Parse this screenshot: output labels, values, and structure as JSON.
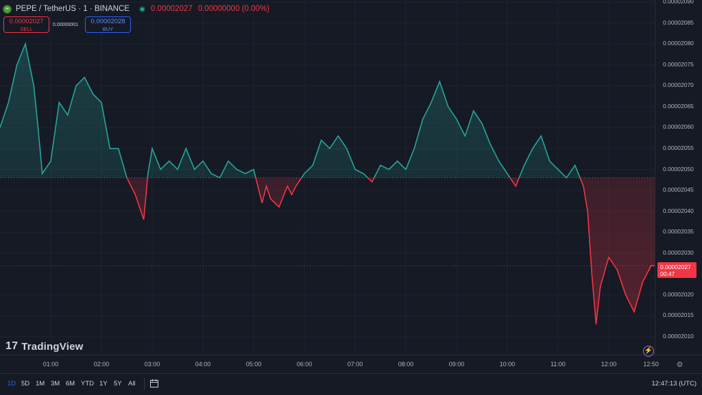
{
  "header": {
    "symbol": "PEPE / TetherUS · 1 · BINANCE",
    "last_price": "0.00002027",
    "change": "0.00000000 (0.00%)"
  },
  "trade": {
    "sell_price": "0.00002027",
    "sell_label": "SELL",
    "spread": "0.00000001",
    "buy_price": "0.00002028",
    "buy_label": "BUY"
  },
  "logo_text": "TradingView",
  "price_tag": {
    "price": "0.00002027",
    "countdown": "00:47"
  },
  "colors": {
    "up": "#26a69a",
    "down": "#f23645",
    "background": "#161a25",
    "accent": "#2962ff"
  },
  "toolbar": {
    "ranges": [
      "1D",
      "5D",
      "1M",
      "3M",
      "6M",
      "YTD",
      "1Y",
      "5Y",
      "All"
    ],
    "active_range": "1D",
    "clock": "12:47:13 (UTC)"
  },
  "icons": [
    "coin-icon",
    "status-dot-icon",
    "calendar-icon",
    "lightning-icon",
    "settings-icon"
  ],
  "chart_data": {
    "type": "area",
    "symbol": "PEPE/USDT",
    "baseline": 2.048e-05,
    "current_price": 2.027e-05,
    "y_ticks": [
      "0.00002090",
      "0.00002085",
      "0.00002080",
      "0.00002075",
      "0.00002070",
      "0.00002065",
      "0.00002060",
      "0.00002055",
      "0.00002050",
      "0.00002045",
      "0.00002040",
      "0.00002035",
      "0.00002030",
      "0.00002020",
      "0.00002015",
      "0.00002010"
    ],
    "ylim": [
      2.01e-05,
      2.09e-05
    ],
    "x_ticks": [
      "01:00",
      "02:00",
      "03:00",
      "04:00",
      "05:00",
      "06:00",
      "07:00",
      "08:00",
      "09:00",
      "10:00",
      "11:00",
      "12:00",
      "12:50"
    ],
    "x": [
      "00:10",
      "00:20",
      "00:30",
      "00:40",
      "00:45",
      "00:50",
      "01:00",
      "01:10",
      "01:20",
      "01:30",
      "01:40",
      "01:50",
      "02:00",
      "02:10",
      "02:20",
      "02:30",
      "02:40",
      "02:50",
      "02:55",
      "03:00",
      "03:10",
      "03:20",
      "03:30",
      "03:40",
      "03:50",
      "04:00",
      "04:10",
      "04:20",
      "04:30",
      "04:40",
      "04:50",
      "05:00",
      "05:10",
      "05:15",
      "05:20",
      "05:30",
      "05:40",
      "05:45",
      "05:50",
      "06:00",
      "06:10",
      "06:20",
      "06:30",
      "06:40",
      "06:50",
      "07:00",
      "07:10",
      "07:20",
      "07:30",
      "07:40",
      "07:50",
      "08:00",
      "08:10",
      "08:20",
      "08:30",
      "08:40",
      "08:50",
      "09:00",
      "09:10",
      "09:20",
      "09:30",
      "09:40",
      "09:50",
      "10:00",
      "10:10",
      "10:20",
      "10:30",
      "10:40",
      "10:50",
      "11:00",
      "11:10",
      "11:20",
      "11:30",
      "11:35",
      "11:40",
      "11:45",
      "11:50",
      "12:00",
      "12:10",
      "12:20",
      "12:30",
      "12:40",
      "12:50"
    ],
    "values": [
      2.066e-05,
      2.075e-05,
      2.08e-05,
      2.07e-05,
      2.06e-05,
      2.049e-05,
      2.052e-05,
      2.066e-05,
      2.063e-05,
      2.07e-05,
      2.072e-05,
      2.068e-05,
      2.066e-05,
      2.055e-05,
      2.055e-05,
      2.048e-05,
      2.044e-05,
      2.038e-05,
      2.049e-05,
      2.055e-05,
      2.05e-05,
      2.052e-05,
      2.05e-05,
      2.055e-05,
      2.05e-05,
      2.052e-05,
      2.049e-05,
      2.048e-05,
      2.052e-05,
      2.05e-05,
      2.049e-05,
      2.05e-05,
      2.042e-05,
      2.046e-05,
      2.043e-05,
      2.041e-05,
      2.046e-05,
      2.044e-05,
      2.046e-05,
      2.049e-05,
      2.051e-05,
      2.057e-05,
      2.055e-05,
      2.058e-05,
      2.055e-05,
      2.05e-05,
      2.049e-05,
      2.047e-05,
      2.051e-05,
      2.05e-05,
      2.052e-05,
      2.05e-05,
      2.055e-05,
      2.062e-05,
      2.066e-05,
      2.071e-05,
      2.065e-05,
      2.062e-05,
      2.058e-05,
      2.064e-05,
      2.061e-05,
      2.056e-05,
      2.052e-05,
      2.049e-05,
      2.046e-05,
      2.051e-05,
      2.055e-05,
      2.058e-05,
      2.052e-05,
      2.05e-05,
      2.048e-05,
      2.051e-05,
      2.046e-05,
      2.04e-05,
      2.025e-05,
      2.013e-05,
      2.022e-05,
      2.029e-05,
      2.026e-05,
      2.02e-05,
      2.016e-05,
      2.023e-05,
      2.027e-05
    ]
  }
}
